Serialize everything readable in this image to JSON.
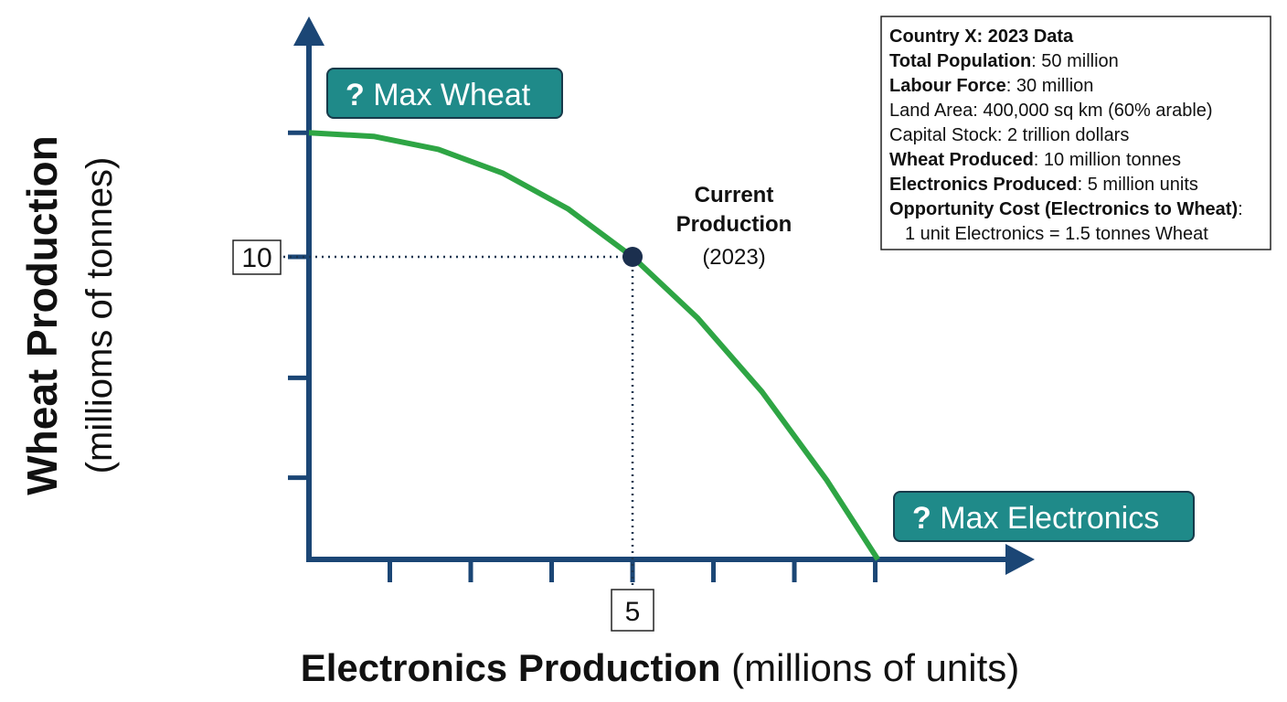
{
  "chart_data": {
    "type": "line",
    "x_title": "Electronics Production",
    "x_title_units": "(millions of units)",
    "y_title": "Wheat Production",
    "y_title_units": "(millioms of tonnes)",
    "x": [
      0,
      1,
      2,
      3,
      4,
      5,
      6,
      7,
      8,
      8.79
    ],
    "series": [
      {
        "color": "#2ea544",
        "values": [
          14.1,
          13.98,
          13.55,
          12.76,
          11.59,
          10,
          7.99,
          5.54,
          2.62,
          0
        ]
      }
    ],
    "xlim": [
      0,
      11.2
    ],
    "ylim": [
      0,
      17.6
    ],
    "xticks": [
      {
        "value": 1.25,
        "label": null
      },
      {
        "value": 2.5,
        "label": null
      },
      {
        "value": 3.75,
        "label": null
      },
      5,
      {
        "value": 6.25,
        "label": null
      },
      {
        "value": 7.5,
        "label": null
      },
      {
        "value": 8.75,
        "label": null
      }
    ],
    "yticks": [
      {
        "value": 2.7,
        "label": null
      },
      {
        "value": 6,
        "label": null
      },
      10,
      {
        "value": 14.1,
        "label": null
      }
    ],
    "point": {
      "x": 5,
      "y": 10,
      "label": "Current Production",
      "sublabel": "(2023)"
    },
    "annotations": [
      {
        "icon": "?",
        "text": "Max Wheat"
      },
      {
        "icon": "?",
        "text": "Max Electronics"
      }
    ],
    "info_box": {
      "title": "Country X: 2023 Data",
      "rows": [
        {
          "label": "Total Population",
          "value": ": 50 million",
          "bold": true
        },
        {
          "label": "Labour Force",
          "value": ": 30 million",
          "bold": true
        },
        {
          "label": "Land Area",
          "value": ": 400,000 sq km (60% arable)",
          "bold": false
        },
        {
          "label": "Capital Stock",
          "value": ": 2 trillion dollars",
          "bold": false
        },
        {
          "label": "Wheat Produced",
          "value": ": 10 million tonnes",
          "bold": true
        },
        {
          "label": "Electronics Produced",
          "value": ": 5 million units",
          "bold": true
        },
        {
          "label": "Opportunity Cost (Electronics to Wheat)",
          "value": ":",
          "bold": true
        }
      ],
      "note": "1 unit Electronics = 1.5 tonnes Wheat"
    }
  }
}
